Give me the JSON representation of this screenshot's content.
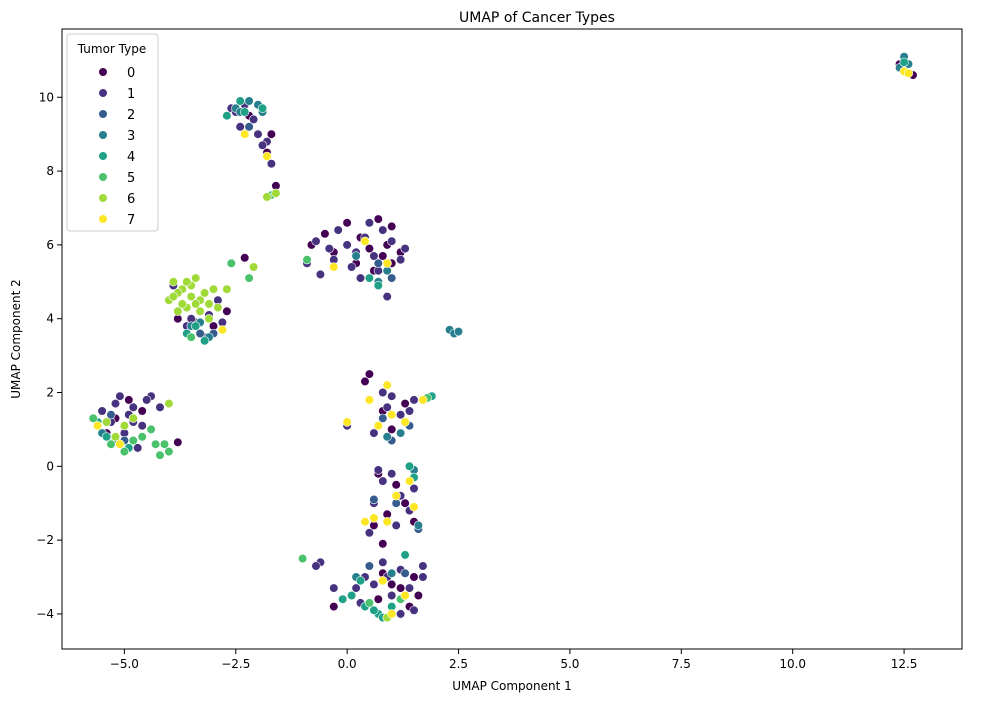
{
  "chart_data": {
    "type": "scatter",
    "title": "UMAP of Cancer Types",
    "xlabel": "UMAP Component 1",
    "ylabel": "UMAP Component 2",
    "xlim": [
      -6.4,
      13.8
    ],
    "ylim": [
      -4.95,
      11.85
    ],
    "xticks": [
      -5.0,
      -2.5,
      0.0,
      2.5,
      5.0,
      7.5,
      10.0,
      12.5
    ],
    "xtick_labels": [
      "−5.0",
      "−2.5",
      "0.0",
      "2.5",
      "5.0",
      "7.5",
      "10.0",
      "12.5"
    ],
    "yticks": [
      -4,
      -2,
      0,
      2,
      4,
      6,
      8,
      10
    ],
    "ytick_labels": [
      "−4",
      "−2",
      "0",
      "2",
      "4",
      "6",
      "8",
      "10"
    ],
    "grid": false,
    "legend": {
      "title": "Tumor Type",
      "placement": "top-left",
      "entries": [
        "0",
        "1",
        "2",
        "3",
        "4",
        "5",
        "6",
        "7"
      ]
    },
    "palette": [
      "#440154",
      "#46327e",
      "#365c8d",
      "#277f8e",
      "#1fa187",
      "#4ac16d",
      "#a0da39",
      "#fde725"
    ],
    "series": [
      {
        "name": "0",
        "points": [
          [
            -2.2,
            9.5
          ],
          [
            -1.8,
            8.5
          ],
          [
            -1.6,
            7.6
          ],
          [
            -2.3,
            5.65
          ],
          [
            -0.8,
            6.0
          ],
          [
            -0.5,
            6.3
          ],
          [
            0.0,
            6.6
          ],
          [
            0.3,
            6.2
          ],
          [
            0.5,
            5.9
          ],
          [
            0.7,
            6.7
          ],
          [
            0.9,
            6.0
          ],
          [
            1.0,
            6.5
          ],
          [
            1.2,
            5.8
          ],
          [
            0.2,
            5.5
          ],
          [
            -0.3,
            5.8
          ],
          [
            0.6,
            5.3
          ],
          [
            0.4,
            2.3
          ],
          [
            0.5,
            2.5
          ],
          [
            0.8,
            1.5
          ],
          [
            1.3,
            1.7
          ],
          [
            1.0,
            1.0
          ],
          [
            0.7,
            -0.2
          ],
          [
            1.1,
            -0.5
          ],
          [
            0.9,
            -1.3
          ],
          [
            1.3,
            -1.0
          ],
          [
            0.6,
            -1.6
          ],
          [
            1.5,
            -1.5
          ],
          [
            0.8,
            -2.1
          ],
          [
            0.8,
            -2.9
          ],
          [
            1.2,
            -3.3
          ],
          [
            0.7,
            -3.6
          ],
          [
            1.4,
            -3.8
          ],
          [
            1.0,
            -3.2
          ],
          [
            1.5,
            -3.0
          ],
          [
            -0.3,
            -3.8
          ],
          [
            1.6,
            -3.5
          ],
          [
            -3.0,
            3.8
          ],
          [
            -2.7,
            4.2
          ],
          [
            -3.8,
            4.0
          ],
          [
            -5.2,
            1.3
          ],
          [
            -4.9,
            1.8
          ],
          [
            -4.6,
            1.5
          ],
          [
            -5.4,
            0.9
          ],
          [
            -3.8,
            0.65
          ],
          [
            12.7,
            10.6
          ],
          [
            12.4,
            10.9
          ],
          [
            1.0,
            5.5
          ],
          [
            0.8,
            5.7
          ],
          [
            -1.7,
            9.0
          ]
        ]
      },
      {
        "name": "1",
        "points": [
          [
            -2.6,
            9.7
          ],
          [
            -2.3,
            9.8
          ],
          [
            -2.0,
            9.0
          ],
          [
            -1.8,
            8.8
          ],
          [
            -2.4,
            9.2
          ],
          [
            -2.1,
            9.4
          ],
          [
            -1.7,
            8.2
          ],
          [
            -1.9,
            8.7
          ],
          [
            -2.5,
            9.6
          ],
          [
            -0.9,
            5.5
          ],
          [
            -0.6,
            5.2
          ],
          [
            -0.3,
            5.6
          ],
          [
            0.0,
            6.0
          ],
          [
            0.2,
            5.8
          ],
          [
            0.4,
            6.2
          ],
          [
            0.6,
            5.7
          ],
          [
            0.8,
            6.4
          ],
          [
            1.0,
            6.1
          ],
          [
            1.2,
            5.6
          ],
          [
            0.3,
            5.1
          ],
          [
            -0.2,
            6.4
          ],
          [
            0.7,
            5.3
          ],
          [
            0.9,
            4.6
          ],
          [
            0.5,
            6.6
          ],
          [
            -0.7,
            6.1
          ],
          [
            -0.4,
            5.9
          ],
          [
            1.3,
            5.9
          ],
          [
            0.1,
            5.4
          ],
          [
            -4.9,
            1.4
          ],
          [
            -5.1,
            1.9
          ],
          [
            -4.8,
            1.6
          ],
          [
            -5.3,
            1.2
          ],
          [
            -5.5,
            1.5
          ],
          [
            -4.6,
            1.1
          ],
          [
            -4.4,
            1.9
          ],
          [
            -4.2,
            1.6
          ],
          [
            -5.0,
            0.9
          ],
          [
            -4.8,
            1.2
          ],
          [
            -5.6,
            1.1
          ],
          [
            -5.2,
            1.7
          ],
          [
            -4.7,
            0.5
          ],
          [
            -4.5,
            1.8
          ],
          [
            -3.4,
            3.9
          ],
          [
            -3.2,
            3.5
          ],
          [
            -3.6,
            3.8
          ],
          [
            -2.9,
            4.5
          ],
          [
            -2.8,
            3.9
          ],
          [
            -3.9,
            4.9
          ],
          [
            -3.5,
            4.0
          ],
          [
            -3.1,
            4.1
          ],
          [
            0.8,
            -0.4
          ],
          [
            1.2,
            -0.8
          ],
          [
            0.6,
            -1.0
          ],
          [
            0.9,
            -1.5
          ],
          [
            1.4,
            -1.2
          ],
          [
            0.7,
            -0.1
          ],
          [
            1.5,
            -0.6
          ],
          [
            0.5,
            -1.8
          ],
          [
            1.1,
            -1.6
          ],
          [
            1.0,
            -0.2
          ],
          [
            0.8,
            -2.6
          ],
          [
            1.2,
            -2.8
          ],
          [
            0.6,
            -3.2
          ],
          [
            1.0,
            -3.5
          ],
          [
            1.4,
            -3.3
          ],
          [
            1.7,
            -3.0
          ],
          [
            0.4,
            -3.0
          ],
          [
            0.2,
            -3.3
          ],
          [
            1.5,
            -3.9
          ],
          [
            1.2,
            -4.0
          ],
          [
            -0.6,
            -2.6
          ],
          [
            -0.7,
            -2.7
          ],
          [
            -0.3,
            -3.3
          ],
          [
            0.3,
            -3.7
          ],
          [
            1.7,
            -2.7
          ],
          [
            0.9,
            -3.0
          ],
          [
            0.9,
            1.6
          ],
          [
            1.5,
            1.8
          ],
          [
            0.8,
            2.0
          ],
          [
            1.2,
            1.4
          ],
          [
            0.0,
            1.1
          ],
          [
            0.6,
            0.9
          ],
          [
            1.4,
            1.5
          ],
          [
            1.0,
            1.9
          ]
        ]
      },
      {
        "name": "2",
        "points": [
          [
            -2.2,
            9.2
          ],
          [
            0.7,
            5.5
          ],
          [
            1.0,
            5.1
          ],
          [
            -3.3,
            3.6
          ],
          [
            -5.0,
            0.7
          ],
          [
            1.4,
            1.1
          ],
          [
            0.8,
            1.3
          ],
          [
            1.0,
            0.7
          ],
          [
            0.6,
            -0.9
          ],
          [
            1.6,
            -1.7
          ],
          [
            0.5,
            -2.7
          ],
          [
            1.3,
            -2.9
          ],
          [
            -5.3,
            1.4
          ],
          [
            -3.0,
            3.6
          ],
          [
            12.5,
            11.0
          ],
          [
            1.1,
            -1.0
          ]
        ]
      },
      {
        "name": "3",
        "points": [
          [
            -2.2,
            9.9
          ],
          [
            -2.5,
            9.7
          ],
          [
            -1.9,
            9.6
          ],
          [
            -2.0,
            9.8
          ],
          [
            2.3,
            3.7
          ],
          [
            2.4,
            3.6
          ],
          [
            2.5,
            3.65
          ],
          [
            0.9,
            5.3
          ],
          [
            0.2,
            5.7
          ],
          [
            0.7,
            5.0
          ],
          [
            -3.1,
            3.5
          ],
          [
            -3.5,
            3.8
          ],
          [
            -5.2,
            0.7
          ],
          [
            -5.5,
            0.9
          ],
          [
            0.9,
            0.8
          ],
          [
            1.2,
            0.9
          ],
          [
            1.5,
            -0.1
          ],
          [
            1.4,
            0.0
          ],
          [
            1.6,
            -1.6
          ],
          [
            1.0,
            -2.9
          ],
          [
            12.4,
            10.8
          ],
          [
            12.5,
            11.1
          ],
          [
            12.6,
            10.9
          ],
          [
            -3.3,
            3.9
          ],
          [
            0.2,
            -3.0
          ],
          [
            -2.4,
            9.6
          ]
        ]
      },
      {
        "name": "4",
        "points": [
          [
            -2.3,
            9.6
          ],
          [
            -2.7,
            9.5
          ],
          [
            -1.9,
            9.7
          ],
          [
            -2.4,
            9.9
          ],
          [
            -3.2,
            3.4
          ],
          [
            -3.6,
            3.6
          ],
          [
            -3.4,
            3.8
          ],
          [
            0.7,
            4.9
          ],
          [
            0.5,
            5.1
          ],
          [
            -5.6,
            1.2
          ],
          [
            -4.9,
            0.5
          ],
          [
            -5.1,
            0.6
          ],
          [
            -5.4,
            0.8
          ],
          [
            0.1,
            -3.5
          ],
          [
            0.4,
            -3.8
          ],
          [
            0.7,
            -4.0
          ],
          [
            1.0,
            -3.8
          ],
          [
            0.8,
            -4.1
          ],
          [
            1.3,
            -2.4
          ],
          [
            0.3,
            -3.1
          ],
          [
            1.4,
            0.0
          ],
          [
            1.5,
            -0.3
          ],
          [
            12.5,
            10.95
          ],
          [
            0.6,
            -3.9
          ],
          [
            -0.1,
            -3.6
          ],
          [
            1.9,
            1.9
          ]
        ]
      },
      {
        "name": "5",
        "points": [
          [
            -1.8,
            7.3
          ],
          [
            -1.7,
            7.35
          ],
          [
            -1.0,
            -2.5
          ],
          [
            -2.6,
            5.5
          ],
          [
            -2.2,
            5.1
          ],
          [
            -4.3,
            0.6
          ],
          [
            -4.6,
            0.8
          ],
          [
            -4.0,
            0.4
          ],
          [
            -4.2,
            0.3
          ],
          [
            -4.4,
            1.0
          ],
          [
            -5.0,
            0.4
          ],
          [
            -5.3,
            0.6
          ],
          [
            -5.7,
            1.3
          ],
          [
            -4.1,
            0.6
          ],
          [
            -4.8,
            0.7
          ],
          [
            0.5,
            -3.7
          ],
          [
            0.9,
            -4.1
          ],
          [
            1.2,
            -3.6
          ],
          [
            -0.9,
            5.6
          ],
          [
            -3.5,
            3.5
          ],
          [
            1.8,
            1.85
          ]
        ]
      },
      {
        "name": "6",
        "points": [
          [
            -3.9,
            5.0
          ],
          [
            -3.7,
            4.8
          ],
          [
            -3.5,
            4.6
          ],
          [
            -3.3,
            4.5
          ],
          [
            -3.1,
            4.4
          ],
          [
            -3.8,
            4.7
          ],
          [
            -3.6,
            4.3
          ],
          [
            -3.4,
            5.1
          ],
          [
            -4.0,
            4.5
          ],
          [
            -3.2,
            4.7
          ],
          [
            -3.5,
            4.9
          ],
          [
            -3.7,
            4.4
          ],
          [
            -3.0,
            4.8
          ],
          [
            -3.3,
            4.2
          ],
          [
            -2.7,
            4.8
          ],
          [
            -3.8,
            4.2
          ],
          [
            -3.6,
            5.0
          ],
          [
            -2.9,
            4.3
          ],
          [
            -3.4,
            4.4
          ],
          [
            -2.1,
            5.4
          ],
          [
            -1.8,
            7.3
          ],
          [
            -1.6,
            7.4
          ],
          [
            -5.4,
            1.2
          ],
          [
            -4.0,
            1.7
          ],
          [
            -5.0,
            1.1
          ],
          [
            -4.8,
            1.3
          ],
          [
            -5.2,
            0.8
          ],
          [
            -3.1,
            4.0
          ],
          [
            -3.9,
            4.6
          ],
          [
            0.9,
            -4.1
          ]
        ]
      },
      {
        "name": "7",
        "points": [
          [
            -2.3,
            9.0
          ],
          [
            -1.8,
            8.4
          ],
          [
            0.4,
            6.1
          ],
          [
            -0.3,
            5.4
          ],
          [
            0.9,
            5.5
          ],
          [
            -2.8,
            3.7
          ],
          [
            -5.1,
            0.6
          ],
          [
            -5.6,
            1.1
          ],
          [
            0.5,
            1.8
          ],
          [
            0.9,
            2.2
          ],
          [
            1.0,
            1.4
          ],
          [
            0.0,
            1.2
          ],
          [
            1.3,
            1.2
          ],
          [
            0.7,
            1.1
          ],
          [
            1.7,
            1.8
          ],
          [
            0.6,
            -1.4
          ],
          [
            1.1,
            -0.8
          ],
          [
            1.5,
            -1.1
          ],
          [
            0.9,
            -1.5
          ],
          [
            1.3,
            -3.5
          ],
          [
            0.8,
            -3.1
          ],
          [
            1.0,
            -4.0
          ],
          [
            12.5,
            10.7
          ],
          [
            12.6,
            10.65
          ],
          [
            0.4,
            -1.5
          ],
          [
            1.4,
            -0.4
          ]
        ]
      }
    ]
  }
}
